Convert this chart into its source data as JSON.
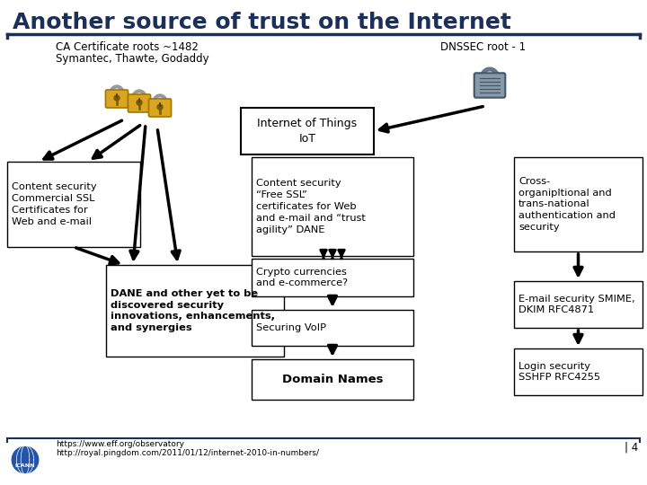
{
  "title": "Another source of trust on the Internet",
  "title_color": "#1a2f5a",
  "title_fontsize": 18,
  "bg_color": "#ffffff",
  "line_color": "#1a2f5a",
  "ca_label_line1": "CA Certificate roots ~1482",
  "ca_label_line2": "Symantec, Thawte, Godaddy",
  "dnssec_label": "DNSSEC root - 1",
  "iot_label": "Internet of Things\nIoT",
  "box_texts": {
    "content_sec": "Content security\nCommercial SSL\nCertificates for\nWeb and e-mail",
    "free_ssl": "Content security\n“Free SSL”\ncertificates for Web\nand e-mail and “trust\nagility” DANE",
    "cross_org": "Cross-\norganipltional and\ntrans-national\nauthentication and\nsecurity",
    "dane": "DANE and other yet to be\ndiscovered security\ninnovations, enhancements,\nand synergies",
    "crypto": "Crypto currencies\nand e-commerce?",
    "voip": "Securing VoIP",
    "domain": "Domain Names",
    "email_sec": "E-mail security SMIME,\nDKIM RFC4871",
    "login_sec": "Login security\nSSHFP RFC4255"
  },
  "footer1": "https://www.eff.org/observatory",
  "footer2": "http://royal.pingdom.com/2011/01/12/internet-2010-in-numbers/",
  "slide_number": "| 4",
  "box_border_color": "#000000",
  "text_color": "#000000",
  "arrow_color": "#000000"
}
